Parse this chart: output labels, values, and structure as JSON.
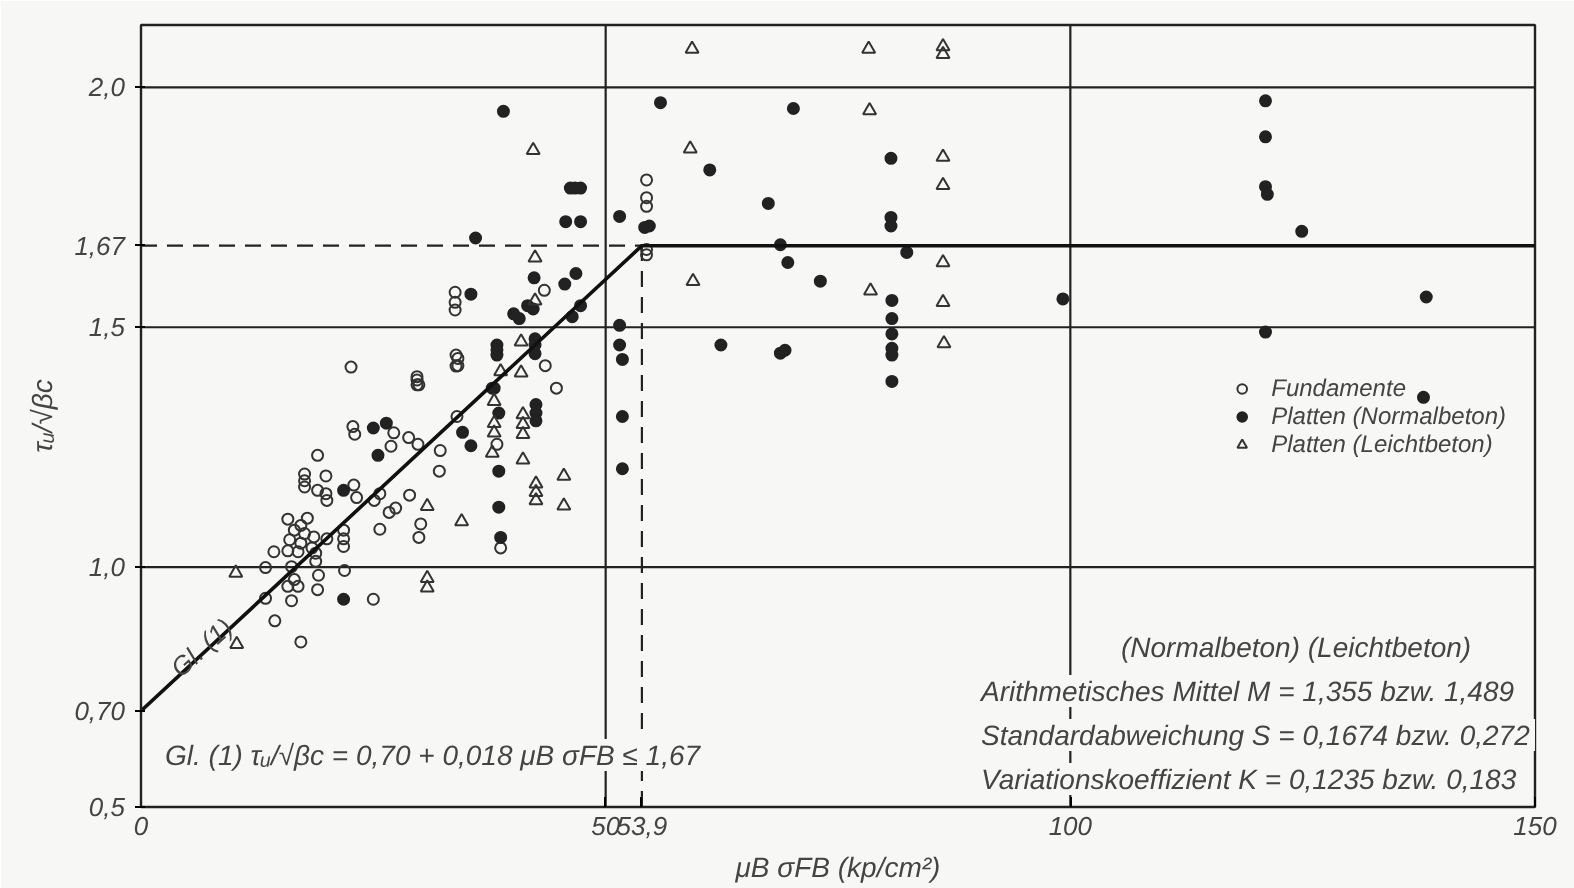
{
  "chart_data": {
    "type": "scatter",
    "xlabel": "μB σFB (kp/cm²)",
    "ylabel": "τᵤ/√βc",
    "xlim": [
      0,
      150
    ],
    "ylim": [
      0.5,
      2.13
    ],
    "xticks": [
      0,
      50,
      {
        "value": 53.9,
        "label": "53,9"
      },
      100,
      150
    ],
    "yticks": [
      {
        "value": 0.5,
        "label": "0,5"
      },
      {
        "value": 0.7,
        "label": "0,70"
      },
      {
        "value": 1.0,
        "label": "1,0"
      },
      {
        "value": 1.5,
        "label": "1,5"
      },
      {
        "value": 1.67,
        "label": "1,67"
      },
      {
        "value": 2.0,
        "label": "2,0"
      }
    ],
    "grid": false,
    "legend": "right",
    "series": [
      {
        "name": "Fundamente",
        "color": "#333333",
        "marker": "circle_open",
        "x": [
          22.6,
          34.1,
          34.1,
          29.7,
          29.9,
          22.8,
          23.0,
          27.2,
          28.8,
          26.9,
          29.8,
          32.2,
          34.0,
          38.3,
          32.1,
          19.0,
          17.6,
          17.6,
          17.6,
          19.9,
          19.0,
          19.9,
          20.0,
          22.9,
          23.2,
          25.1,
          25.7,
          28.9,
          26.7,
          27.4,
          25.7,
          30.1,
          29.9,
          15.8,
          17.2,
          17.9,
          16.5,
          17.6,
          18.6,
          16.0,
          17.2,
          18.4,
          16.9,
          20.0,
          21.8,
          21.8,
          21.8,
          14.3,
          15.8,
          18.8,
          18.8,
          13.4,
          16.2,
          16.5,
          15.8,
          16.9,
          16.2,
          19.1,
          19.0,
          21.9,
          13.4,
          25.0,
          14.4,
          17.2,
          38.7,
          54.4,
          54.4,
          54.4,
          54.4,
          54.4,
          43.4,
          33.8,
          33.8,
          33.8,
          33.9,
          33.9,
          43.5,
          29.7,
          29.7,
          44.7
        ],
        "values": [
          1.417,
          1.435,
          1.42,
          1.39,
          1.38,
          1.293,
          1.277,
          1.28,
          1.27,
          1.252,
          1.256,
          1.243,
          1.314,
          1.256,
          1.2,
          1.233,
          1.194,
          1.18,
          1.167,
          1.19,
          1.16,
          1.153,
          1.139,
          1.171,
          1.145,
          1.139,
          1.153,
          1.15,
          1.114,
          1.123,
          1.079,
          1.09,
          1.062,
          1.1,
          1.087,
          1.102,
          1.077,
          1.07,
          1.063,
          1.057,
          1.05,
          1.04,
          1.032,
          1.059,
          1.077,
          1.059,
          1.043,
          1.032,
          1.034,
          1.029,
          1.012,
          0.999,
          1.001,
          0.974,
          0.96,
          0.96,
          0.93,
          0.983,
          0.953,
          0.993,
          0.935,
          0.933,
          0.888,
          0.844,
          1.04,
          1.807,
          1.77,
          1.752,
          1.662,
          1.651,
          1.577,
          1.573,
          1.552,
          1.536,
          1.442,
          1.419,
          1.42,
          1.397,
          1.38,
          1.373
        ]
      },
      {
        "name": "Platten (Normalbeton)",
        "color": "#222222",
        "marker": "circle",
        "x": [
          25.0,
          26.4,
          25.5,
          21.8,
          21.8,
          34.6,
          35.5,
          38.0,
          38.5,
          38.5,
          38.5,
          38.7,
          46.2,
          46.7,
          47.3,
          45.7,
          47.3,
          51.5,
          54.2,
          54.7,
          36.0,
          42.3,
          45.6,
          46.8,
          35.5,
          40.1,
          40.7,
          41.6,
          42.2,
          46.4,
          47.3,
          51.5,
          51.5,
          51.8,
          38.3,
          38.3,
          38.3,
          42.4,
          42.4,
          42.4,
          37.8,
          42.5,
          42.5,
          42.5,
          51.8,
          51.8,
          55.9,
          70.2,
          61.2,
          80.7,
          67.5,
          80.7,
          80.7,
          68.8,
          69.6,
          82.4,
          73.1,
          80.8,
          99.2,
          80.8,
          80.8,
          80.8,
          80.8,
          62.4,
          68.8,
          69.3,
          80.8,
          121.0,
          121.0,
          121.0,
          121.2,
          124.9,
          138.3,
          121.0,
          138.0,
          39.0
        ],
        "values": [
          1.29,
          1.3,
          1.233,
          1.16,
          0.933,
          1.281,
          1.253,
          1.373,
          1.321,
          1.2,
          1.125,
          1.062,
          1.79,
          1.79,
          1.79,
          1.72,
          1.72,
          1.731,
          1.708,
          1.711,
          1.686,
          1.603,
          1.59,
          1.612,
          1.569,
          1.528,
          1.518,
          1.545,
          1.538,
          1.522,
          1.545,
          1.504,
          1.463,
          1.433,
          1.463,
          1.453,
          1.442,
          1.476,
          1.463,
          1.445,
          1.373,
          1.339,
          1.321,
          1.305,
          1.314,
          1.205,
          1.968,
          1.956,
          1.828,
          1.852,
          1.758,
          1.729,
          1.711,
          1.672,
          1.635,
          1.656,
          1.596,
          1.556,
          1.559,
          1.518,
          1.486,
          1.456,
          1.442,
          1.463,
          1.446,
          1.452,
          1.387,
          1.972,
          1.897,
          1.793,
          1.777,
          1.7,
          1.563,
          1.49,
          1.354,
          1.95
        ]
      },
      {
        "name": "Platten (Leichtbeton)",
        "color": "#333333",
        "marker": "triangle_open",
        "x": [
          30.8,
          34.5,
          10.2,
          10.3,
          30.8,
          30.8,
          38.7,
          38.0,
          41.1,
          41.1,
          41.1,
          41.1,
          38.0,
          38.0,
          37.8,
          42.2,
          42.4,
          42.4,
          40.9,
          40.9,
          45.5,
          42.5,
          42.5,
          42.5,
          45.5,
          59.3,
          78.3,
          86.3,
          86.3,
          78.4,
          59.1,
          86.3,
          86.3,
          86.3,
          59.4,
          78.5,
          86.3,
          86.4
        ],
        "values": [
          1.127,
          1.095,
          0.988,
          0.839,
          0.977,
          0.957,
          1.408,
          1.346,
          1.318,
          1.298,
          1.277,
          1.224,
          1.3,
          1.28,
          1.238,
          1.869,
          1.645,
          1.555,
          1.47,
          1.405,
          1.19,
          1.174,
          1.156,
          1.139,
          1.128,
          2.08,
          2.08,
          2.085,
          2.069,
          1.952,
          1.872,
          1.855,
          1.796,
          1.635,
          1.596,
          1.576,
          1.552,
          1.466
        ]
      },
      {
        "type": "line",
        "color": "#111111",
        "x": [
          0,
          53.9,
          150
        ],
        "values": [
          0.7,
          1.67,
          1.67
        ]
      }
    ],
    "ref_lines": [
      {
        "axis": "x",
        "value": 50,
        "color": "#222222",
        "line_style": "solid"
      },
      {
        "axis": "x",
        "value": 100,
        "color": "#222222",
        "line_style": "solid"
      },
      {
        "axis": "y",
        "value": 1.0,
        "color": "#222222",
        "line_style": "solid"
      },
      {
        "axis": "y",
        "value": 1.5,
        "color": "#222222",
        "line_style": "solid"
      },
      {
        "axis": "y",
        "value": 2.0,
        "color": "#222222",
        "line_style": "solid"
      },
      {
        "axis": "y",
        "value": 1.67,
        "color": "#222222",
        "line_style": "dashed"
      },
      {
        "axis": "x",
        "value": 53.9,
        "color": "#222222",
        "line_style": "dashed"
      }
    ],
    "annotations": [
      "Gl. (1)",
      "Gl. (1)  τᵤ/√βc = 0,70 + 0,018 μB σFB ≤ 1,67",
      "(Normalbeton)  (Leichtbeton)",
      "Arithmetisches Mittel  M = 1,355  bzw. 1,489",
      "Standardabweichung  S = 0,1674  bzw. 0,272",
      "Variationskoeffizient  K = 0,1235  bzw. 0,183"
    ]
  }
}
